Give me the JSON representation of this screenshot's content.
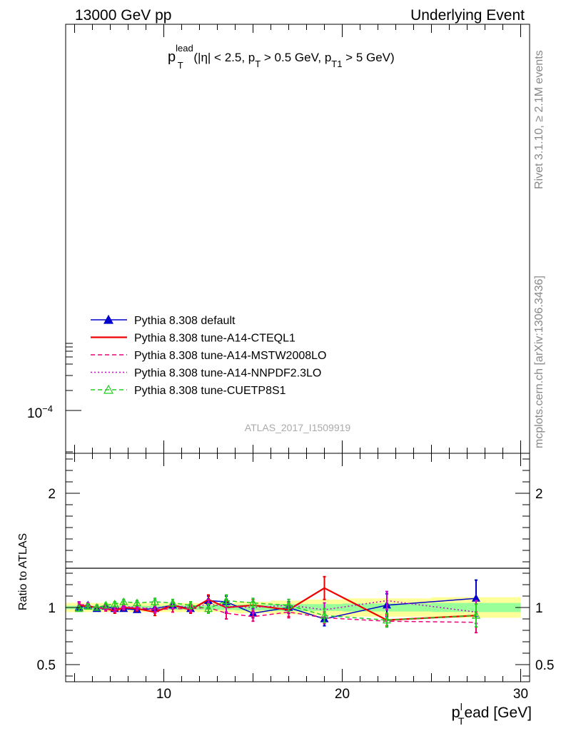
{
  "header": {
    "left": "13000 GeV pp",
    "right": "Underlying Event"
  },
  "side": {
    "rivet": "Rivet 3.1.10, ≥ 2.1M events",
    "mcplots": "mcplots.cern.ch [arXiv:1306.3436]"
  },
  "main_title": {
    "p": "p",
    "sup": "lead",
    "sub": "T",
    "rest1": " (|η| < 2.5, p",
    "sub2": "T",
    "rest2": " > 0.5 GeV, p",
    "sub3": "T1",
    "rest3": " > 5 GeV)"
  },
  "watermark": "ATLAS_2017_I1509919",
  "upper_ytick": "10",
  "upper_ytick_exp": "−4",
  "ratio_ylabel": "Ratio to ATLAS",
  "xlabel": {
    "p": "p",
    "sup": "l",
    "sub": "T",
    "rest": "ead [GeV]"
  },
  "colors": {
    "default": "#0000cc",
    "cteql1": "#ee0000",
    "mstw": "#ee0077",
    "nnpdf": "#cc00cc",
    "cuetp8s1": "#22cc22",
    "band_outer": "#ffff99",
    "band_inner": "#99ff99"
  },
  "chart_data": {
    "type": "line",
    "upper_panel": {
      "y_scale": "log",
      "y_ticks": [
        "10^-4"
      ]
    },
    "ratio_panel": {
      "xlim": [
        4.5,
        30.5
      ],
      "ylim": [
        0.35,
        2.35
      ],
      "x_ticks": [
        10,
        20,
        30
      ],
      "y_ticks": [
        0.5,
        1,
        2
      ],
      "reference_line": 1
    },
    "x": [
      5.25,
      5.75,
      6.25,
      6.75,
      7.25,
      7.75,
      8.5,
      9.5,
      10.5,
      11.5,
      12.5,
      13.5,
      15,
      17,
      19,
      22.5,
      27.5
    ],
    "bands": {
      "x_edges": [
        4.5,
        6,
        8,
        10,
        12,
        14,
        16,
        18,
        20,
        25,
        30
      ],
      "outer": [
        0.04,
        0.04,
        0.04,
        0.04,
        0.04,
        0.05,
        0.06,
        0.07,
        0.08,
        0.09,
        0.1
      ],
      "inner": [
        0.015,
        0.015,
        0.015,
        0.02,
        0.02,
        0.025,
        0.03,
        0.03,
        0.035,
        0.04,
        0.05
      ]
    },
    "series": [
      {
        "name": "Pythia 8.308 default",
        "color_key": "default",
        "dash": "solid",
        "marker": "filled-triangle",
        "values": [
          1.0,
          1.02,
          0.99,
          1.01,
          0.99,
          0.99,
          0.98,
          0.99,
          1.02,
          0.99,
          1.06,
          1.05,
          0.95,
          1.0,
          0.9,
          1.02,
          1.08
        ],
        "errors": [
          0.02,
          0.02,
          0.02,
          0.02,
          0.02,
          0.02,
          0.02,
          0.03,
          0.03,
          0.03,
          0.04,
          0.05,
          0.04,
          0.05,
          0.06,
          0.1,
          0.16
        ]
      },
      {
        "name": "Pythia 8.308 tune-A14-CTEQL1",
        "color_key": "cteql1",
        "dash": "solid",
        "marker": "none",
        "values": [
          1.02,
          1.01,
          1.0,
          0.99,
          0.97,
          1.0,
          0.99,
          0.96,
          1.02,
          0.98,
          1.07,
          1.0,
          1.02,
          0.98,
          1.17,
          0.89,
          0.93
        ],
        "errors": [
          0.02,
          0.02,
          0.02,
          0.02,
          0.02,
          0.02,
          0.02,
          0.03,
          0.03,
          0.03,
          0.04,
          0.05,
          0.05,
          0.06,
          0.1,
          0.05,
          0.1
        ]
      },
      {
        "name": "Pythia 8.308 tune-A14-MSTW2008LO",
        "color_key": "mstw",
        "dash": "dashed",
        "marker": "none",
        "values": [
          1.03,
          1.01,
          1.0,
          0.99,
          0.98,
          1.0,
          1.0,
          0.98,
          0.99,
          0.99,
          1.0,
          0.95,
          0.92,
          0.96,
          0.91,
          0.88,
          0.87
        ],
        "errors": [
          0.02,
          0.02,
          0.02,
          0.02,
          0.02,
          0.02,
          0.02,
          0.03,
          0.03,
          0.03,
          0.04,
          0.05,
          0.04,
          0.05,
          0.05,
          0.05,
          0.09
        ]
      },
      {
        "name": "Pythia 8.308 tune-A14-NNPDF2.3LO",
        "color_key": "nnpdf",
        "dash": "dotted",
        "marker": "none",
        "values": [
          1.03,
          1.02,
          1.0,
          1.0,
          0.99,
          1.01,
          1.0,
          0.99,
          1.02,
          1.0,
          1.03,
          1.01,
          1.0,
          1.02,
          0.98,
          1.06,
          0.96
        ],
        "errors": [
          0.02,
          0.02,
          0.02,
          0.02,
          0.02,
          0.02,
          0.02,
          0.03,
          0.03,
          0.03,
          0.04,
          0.05,
          0.05,
          0.05,
          0.06,
          0.08,
          0.1
        ]
      },
      {
        "name": "Pythia 8.308 tune-CUETP8S1",
        "color_key": "cuetp8s1",
        "dash": "dashed",
        "marker": "open-triangle",
        "values": [
          0.99,
          1.01,
          1.0,
          1.02,
          1.03,
          1.05,
          1.04,
          1.05,
          1.04,
          1.02,
          0.99,
          1.06,
          1.04,
          1.02,
          0.93,
          0.89,
          0.93
        ],
        "errors": [
          0.02,
          0.02,
          0.02,
          0.02,
          0.02,
          0.02,
          0.02,
          0.03,
          0.03,
          0.03,
          0.04,
          0.05,
          0.04,
          0.05,
          0.06,
          0.06,
          0.1
        ]
      }
    ]
  }
}
